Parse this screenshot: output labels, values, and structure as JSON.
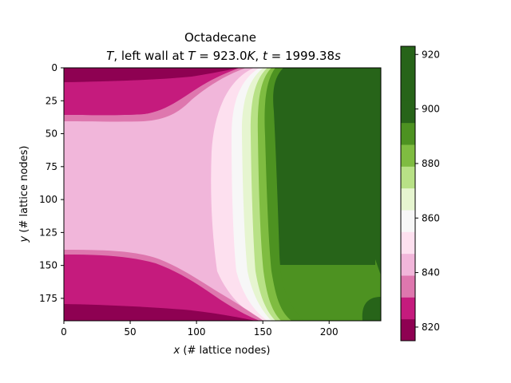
{
  "chart_data": {
    "type": "heatmap",
    "title_line1": "Octadecane",
    "title_line2": {
      "var": "T",
      "mid1": ", left wall at ",
      "var2": "T",
      "eq1": " = 923.0",
      "unit1": "K",
      "sep": ", ",
      "var3": "t",
      "eq2": " = 1999.38",
      "unit2": "s"
    },
    "xlabel": {
      "var": "x",
      "rest": " (# lattice nodes)"
    },
    "ylabel": {
      "var": "y",
      "rest": " (# lattice nodes)"
    },
    "x_ticks": [
      0,
      50,
      100,
      150,
      200
    ],
    "y_ticks": [
      0,
      25,
      50,
      75,
      100,
      125,
      150,
      175
    ],
    "xlim": [
      0,
      239
    ],
    "ylim": [
      192,
      0
    ],
    "colorbar": {
      "ticks": [
        820,
        840,
        860,
        880,
        900,
        920
      ],
      "levels": [
        815,
        823,
        831,
        839,
        847,
        855,
        863,
        871,
        879,
        887,
        895,
        903,
        911,
        923
      ],
      "colors": [
        "#8e0152",
        "#c51b7d",
        "#de77ae",
        "#f1b6da",
        "#fde0ef",
        "#f7f7f7",
        "#e6f5d0",
        "#b8e186",
        "#7fbc41",
        "#4d9221",
        "#276419",
        "#276419"
      ]
    },
    "field_description_points": {
      "solid_front_x_at_y": [
        [
          0,
          160
        ],
        [
          25,
          150
        ],
        [
          50,
          145
        ],
        [
          96,
          144
        ],
        [
          140,
          147
        ],
        [
          175,
          158
        ],
        [
          192,
          165
        ]
      ],
      "melt_front_x_at_y": [
        [
          0,
          185
        ],
        [
          50,
          170
        ],
        [
          100,
          170
        ],
        [
          150,
          170
        ],
        [
          192,
          175
        ]
      ]
    }
  }
}
